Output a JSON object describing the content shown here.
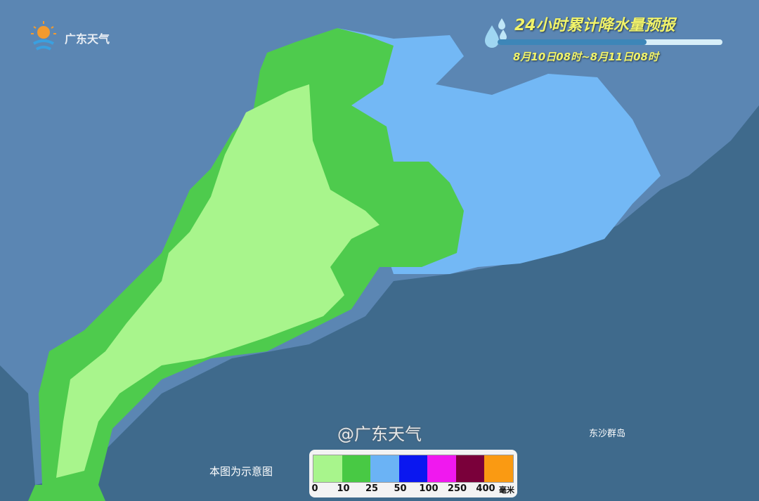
{
  "logo": {
    "text": "广东天气"
  },
  "header": {
    "title": "24小时累计降水量预报",
    "period": "8月10日08时~8月11日08时"
  },
  "map": {
    "note": "本图为示意图",
    "island_label": "东沙群岛",
    "sea_color": "#3f6a8c",
    "land_color": "#5b86b3"
  },
  "legend": {
    "colors": [
      "#a8f58c",
      "#48c944",
      "#6bb3f5",
      "#0a17f0",
      "#f018ef",
      "#7a003a",
      "#fa9a12"
    ],
    "ticks": [
      "0",
      "10",
      "25",
      "50",
      "100",
      "250",
      "400"
    ],
    "unit": "毫米"
  },
  "watermark": "@广东天气"
}
